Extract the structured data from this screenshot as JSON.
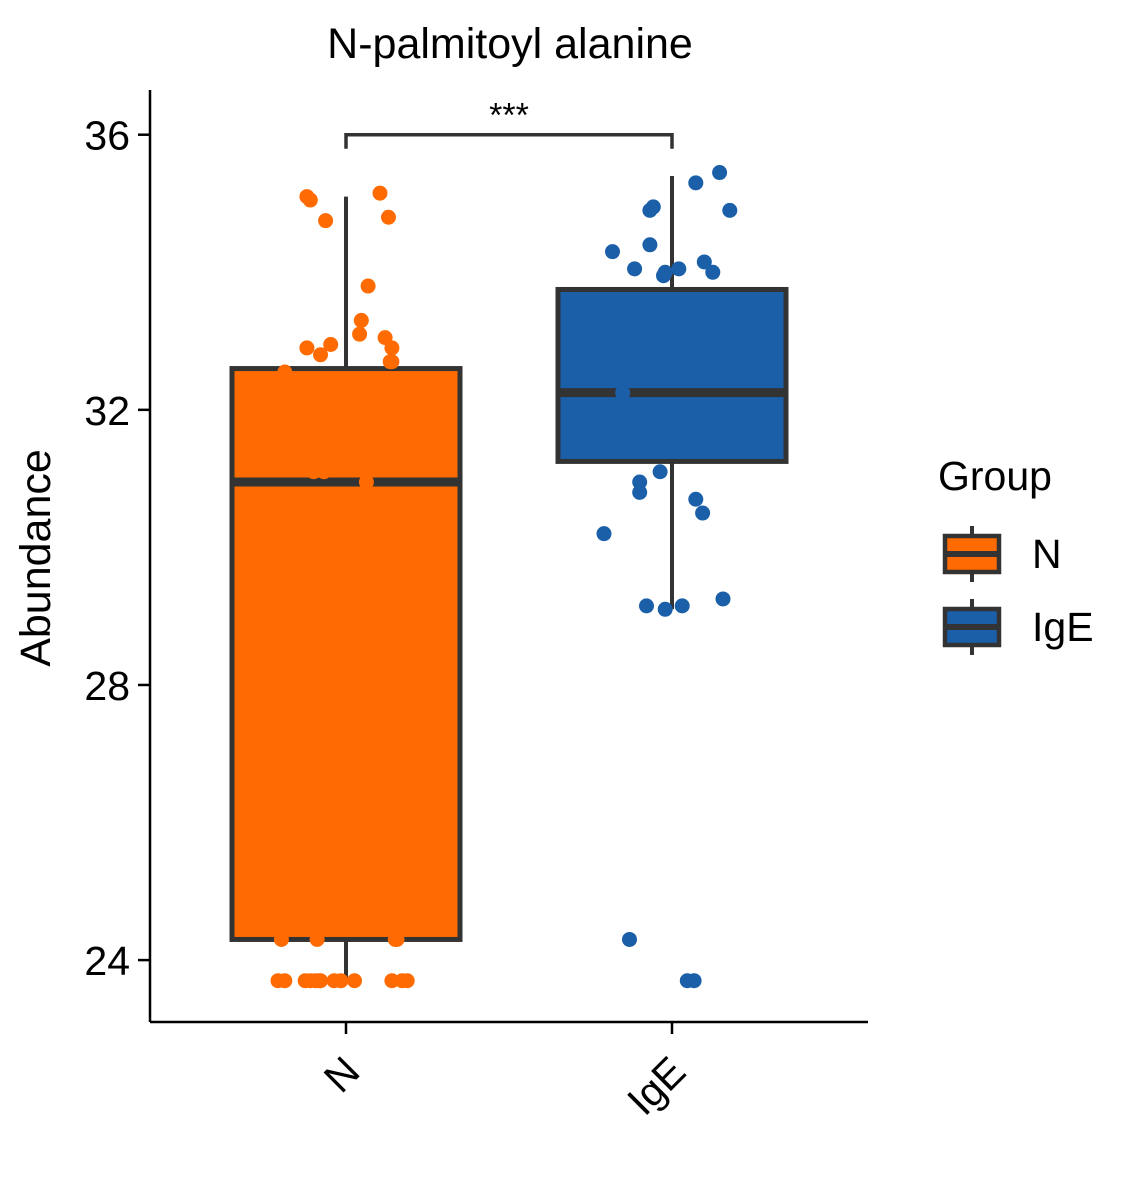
{
  "chart_data": {
    "type": "box",
    "title": "N-palmitoyl alanine",
    "xlabel": "",
    "ylabel": "Abundance",
    "ylim": [
      23.1,
      36.65
    ],
    "yticks": [
      24,
      28,
      32,
      36
    ],
    "ytick_labels": [
      "24",
      "28",
      "32",
      "36"
    ],
    "categories": [
      "N",
      "IgE"
    ],
    "grid": false,
    "significance": {
      "from": "N",
      "to": "IgE",
      "y": 36.0,
      "label": "***"
    },
    "legend": {
      "title": "Group",
      "position": "right",
      "items": [
        {
          "label": "N",
          "color": "#FF6B00"
        },
        {
          "label": "IgE",
          "color": "#1A5FA8"
        }
      ]
    },
    "series": [
      {
        "name": "N",
        "color": "#FF6B00",
        "box": {
          "whisker_low": 23.7,
          "q1": 24.3,
          "median": 30.95,
          "q3": 32.6,
          "whisker_high": 35.1
        },
        "points": [
          {
            "x": -0.4,
            "y": 23.7
          },
          {
            "x": -0.36,
            "y": 23.7
          },
          {
            "x": -0.24,
            "y": 23.7
          },
          {
            "x": -0.21,
            "y": 23.7
          },
          {
            "x": -0.18,
            "y": 23.7
          },
          {
            "x": -0.16,
            "y": 23.7
          },
          {
            "x": -0.15,
            "y": 23.7
          },
          {
            "x": -0.07,
            "y": 23.7
          },
          {
            "x": -0.03,
            "y": 23.7
          },
          {
            "x": 0.05,
            "y": 23.7
          },
          {
            "x": 0.27,
            "y": 23.7
          },
          {
            "x": 0.33,
            "y": 23.7
          },
          {
            "x": 0.36,
            "y": 23.7
          },
          {
            "x": -0.38,
            "y": 24.3
          },
          {
            "x": -0.17,
            "y": 24.3
          },
          {
            "x": 0.29,
            "y": 24.3
          },
          {
            "x": 0.3,
            "y": 24.3
          },
          {
            "x": -0.37,
            "y": 24.9
          },
          {
            "x": -0.39,
            "y": 30.6
          },
          {
            "x": 0.39,
            "y": 30.75
          },
          {
            "x": 0.12,
            "y": 30.95
          },
          {
            "x": -0.19,
            "y": 31.1
          },
          {
            "x": -0.13,
            "y": 31.1
          },
          {
            "x": -0.38,
            "y": 31.8
          },
          {
            "x": -0.36,
            "y": 32.55
          },
          {
            "x": 0.26,
            "y": 32.7
          },
          {
            "x": 0.27,
            "y": 32.7
          },
          {
            "x": 0.27,
            "y": 32.9
          },
          {
            "x": -0.23,
            "y": 32.9
          },
          {
            "x": -0.15,
            "y": 32.8
          },
          {
            "x": -0.09,
            "y": 32.95
          },
          {
            "x": 0.23,
            "y": 33.05
          },
          {
            "x": 0.08,
            "y": 33.1
          },
          {
            "x": 0.09,
            "y": 33.3
          },
          {
            "x": 0.13,
            "y": 33.8
          },
          {
            "x": -0.12,
            "y": 34.75
          },
          {
            "x": 0.25,
            "y": 34.8
          },
          {
            "x": -0.23,
            "y": 35.1
          },
          {
            "x": -0.21,
            "y": 35.05
          },
          {
            "x": 0.2,
            "y": 35.15
          }
        ]
      },
      {
        "name": "IgE",
        "color": "#1A5FA8",
        "box": {
          "whisker_low": 29.1,
          "q1": 31.25,
          "median": 32.25,
          "q3": 33.75,
          "whisker_high": 35.4
        },
        "points": [
          {
            "x": 0.09,
            "y": 23.7
          },
          {
            "x": 0.13,
            "y": 23.7
          },
          {
            "x": -0.25,
            "y": 24.3
          },
          {
            "x": -0.4,
            "y": 30.2
          },
          {
            "x": 0.3,
            "y": 29.25
          },
          {
            "x": -0.15,
            "y": 29.15
          },
          {
            "x": -0.04,
            "y": 29.1
          },
          {
            "x": 0.06,
            "y": 29.15
          },
          {
            "x": 0.14,
            "y": 30.7
          },
          {
            "x": 0.18,
            "y": 30.5
          },
          {
            "x": -0.19,
            "y": 30.95
          },
          {
            "x": -0.19,
            "y": 30.8
          },
          {
            "x": -0.07,
            "y": 31.1
          },
          {
            "x": -0.38,
            "y": 31.4
          },
          {
            "x": -0.37,
            "y": 31.9
          },
          {
            "x": -0.29,
            "y": 32.25
          },
          {
            "x": -0.36,
            "y": 33.25
          },
          {
            "x": -0.35,
            "y": 34.3
          },
          {
            "x": -0.22,
            "y": 34.05
          },
          {
            "x": -0.13,
            "y": 34.4
          },
          {
            "x": -0.05,
            "y": 33.95
          },
          {
            "x": -0.04,
            "y": 34.0
          },
          {
            "x": 0.04,
            "y": 34.05
          },
          {
            "x": 0.19,
            "y": 34.15
          },
          {
            "x": 0.24,
            "y": 34.0
          },
          {
            "x": -0.13,
            "y": 34.9
          },
          {
            "x": -0.11,
            "y": 34.95
          },
          {
            "x": 0.34,
            "y": 34.9
          },
          {
            "x": 0.14,
            "y": 35.3
          },
          {
            "x": 0.28,
            "y": 35.45
          }
        ]
      }
    ]
  }
}
